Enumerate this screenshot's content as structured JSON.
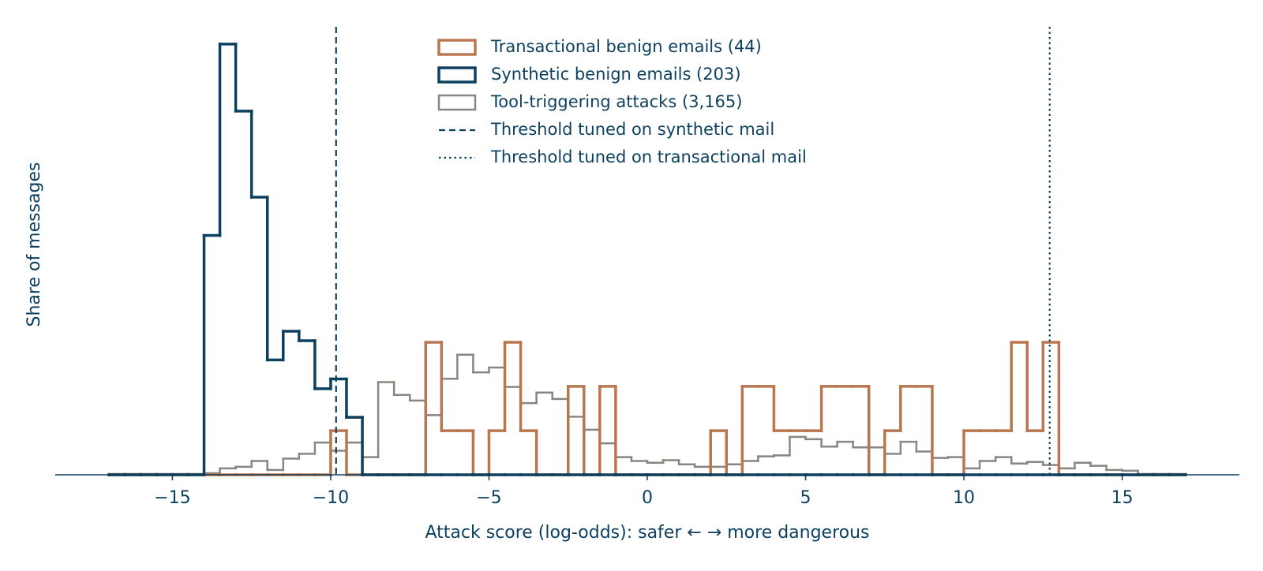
{
  "chart_data": {
    "type": "histogram",
    "histtype": "step",
    "x_label": "Attack score (log-odds): safer  ←   →  more dangerous",
    "y_label": "Share of messages",
    "bins": [
      -17,
      -16.5,
      -16,
      -15.5,
      -15,
      -14.5,
      -14,
      -13.5,
      -13,
      -12.5,
      -12,
      -11.5,
      -11,
      -10.5,
      -10,
      -9.5,
      -9,
      -8.5,
      -8,
      -7.5,
      -7,
      -6.5,
      -6,
      -5.5,
      -5,
      -4.5,
      -4,
      -3.5,
      -3,
      -2.5,
      -2,
      -1.5,
      -1,
      -0.5,
      0,
      0.5,
      1,
      1.5,
      2,
      2.5,
      3,
      3.5,
      4,
      4.5,
      5,
      5.5,
      6,
      6.5,
      7,
      7.5,
      8,
      8.5,
      9,
      9.5,
      10,
      10.5,
      11,
      11.5,
      12,
      12.5,
      13,
      13.5,
      14,
      14.5,
      15,
      15.5,
      16,
      16.5,
      17
    ],
    "series": [
      {
        "name": "Transactional benign emails (44)",
        "color": "#b8774f",
        "values": [
          0,
          0,
          0,
          0,
          0,
          0,
          0,
          0,
          0,
          0,
          0,
          0,
          0,
          0,
          0.0227,
          0,
          0,
          0,
          0,
          0,
          0.0682,
          0.0227,
          0.0227,
          0,
          0.0227,
          0.0682,
          0.0227,
          0,
          0,
          0.0455,
          0,
          0.0455,
          0,
          0,
          0,
          0,
          0,
          0,
          0.0227,
          0,
          0.0455,
          0.0455,
          0.0227,
          0.0227,
          0.0227,
          0.0455,
          0.0455,
          0.0455,
          0,
          0.0227,
          0.0455,
          0.0455,
          0,
          0,
          0.0227,
          0.0227,
          0.0227,
          0.0682,
          0.0227,
          0.0682,
          0,
          0,
          0,
          0,
          0,
          0,
          0,
          0
        ]
      },
      {
        "name": "Synthetic benign emails (203)",
        "color": "#0d3f5f",
        "values": [
          0,
          0,
          0,
          0,
          0,
          0,
          0.1232,
          0.2217,
          0.1872,
          0.1429,
          0.0591,
          0.0739,
          0.069,
          0.0443,
          0.0493,
          0.0296,
          0,
          0,
          0,
          0,
          0,
          0,
          0,
          0,
          0,
          0,
          0,
          0,
          0,
          0,
          0,
          0,
          0,
          0,
          0,
          0,
          0,
          0,
          0,
          0,
          0,
          0,
          0,
          0,
          0,
          0,
          0,
          0,
          0,
          0,
          0,
          0,
          0,
          0,
          0,
          0,
          0,
          0,
          0,
          0,
          0,
          0,
          0,
          0,
          0,
          0,
          0,
          0
        ]
      },
      {
        "name": "Tool-triggering attacks (3,165)",
        "color": "#8a8580",
        "values": [
          0.0004,
          0.0004,
          0.0004,
          0.0004,
          0.0004,
          0.0004,
          0.0008,
          0.0033,
          0.0041,
          0.0071,
          0.0025,
          0.0083,
          0.0108,
          0.0166,
          0.0124,
          0.0166,
          0.0091,
          0.0477,
          0.0411,
          0.0382,
          0.0307,
          0.0494,
          0.0618,
          0.0527,
          0.0552,
          0.0452,
          0.0369,
          0.0423,
          0.039,
          0.0299,
          0.0232,
          0.0162,
          0.0091,
          0.0071,
          0.0062,
          0.0075,
          0.0054,
          0.0041,
          0.0041,
          0.0054,
          0.0071,
          0.0095,
          0.01,
          0.0195,
          0.0183,
          0.0145,
          0.017,
          0.0141,
          0.0141,
          0.0108,
          0.017,
          0.012,
          0.0087,
          0.0091,
          0.0033,
          0.0071,
          0.0091,
          0.0058,
          0.0066,
          0.005,
          0.0033,
          0.0062,
          0.0046,
          0.0025,
          0.0021,
          0.0004,
          0.0004,
          0.0004
        ]
      }
    ],
    "vlines": [
      {
        "name": "Threshold tuned on synthetic mail",
        "x": -9.83,
        "style": "dashed",
        "color": "#0d3f5f"
      },
      {
        "name": "Threshold tuned on transactional mail",
        "x": 12.71,
        "style": "dotted",
        "color": "#0d3f5f"
      }
    ],
    "xlim": [
      -18.7,
      18.7
    ],
    "xticks": [
      {
        "value": -15,
        "label": "−15"
      },
      {
        "value": -10,
        "label": "−10"
      },
      {
        "value": -5,
        "label": "−5"
      },
      0,
      5,
      10,
      15
    ],
    "ylim": [
      0,
      0.233
    ],
    "legend": "upper center",
    "grid": false
  }
}
